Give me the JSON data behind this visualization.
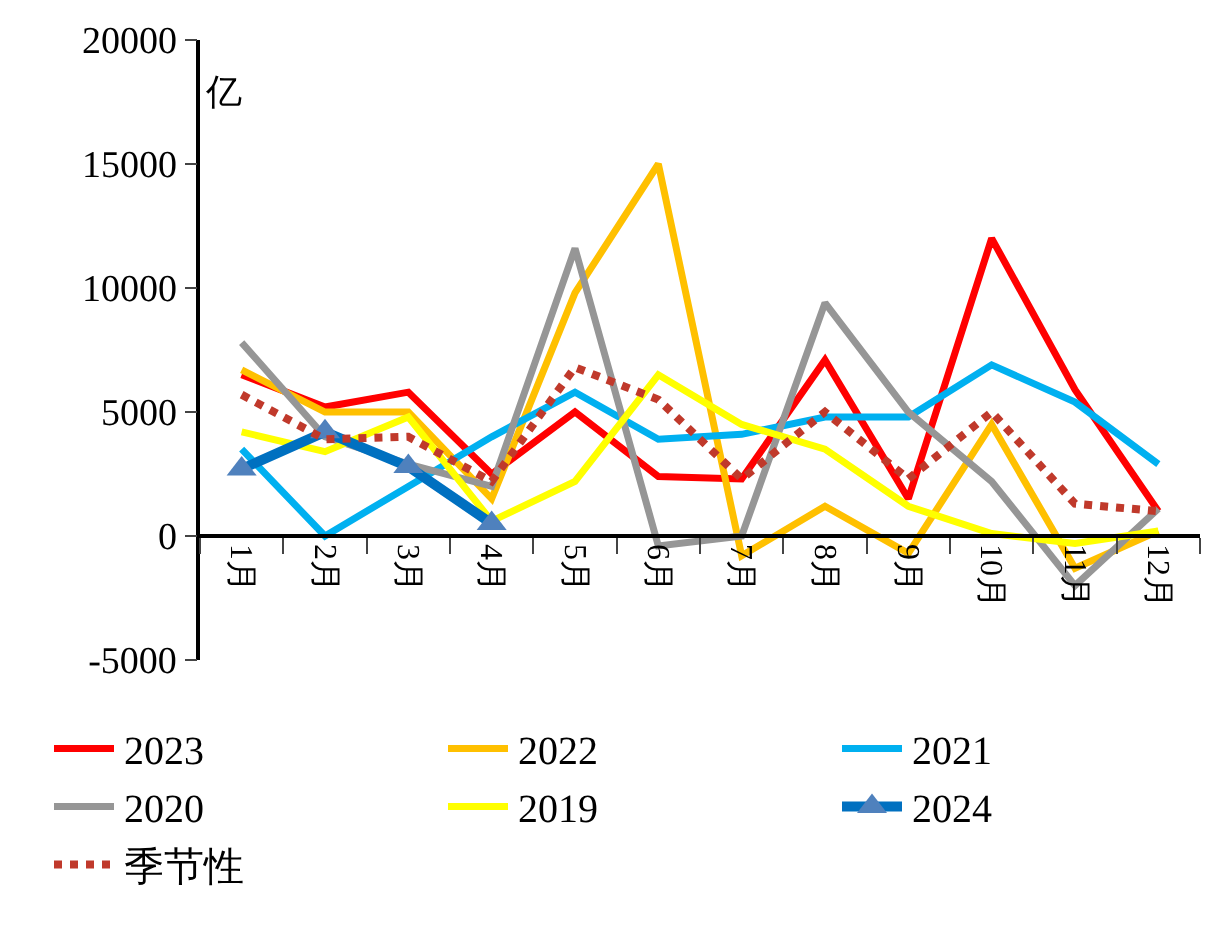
{
  "chart_data": {
    "type": "line",
    "ylabel": "亿",
    "categories": [
      "1月",
      "2月",
      "3月",
      "4月",
      "5月",
      "6月",
      "7月",
      "8月",
      "9月",
      "10月",
      "11月",
      "12月"
    ],
    "series": [
      {
        "name": "2023",
        "color": "#ff0000",
        "values": [
          6500,
          5200,
          5800,
          2500,
          5000,
          2400,
          2300,
          7100,
          1500,
          12000,
          5900,
          1000
        ]
      },
      {
        "name": "2022",
        "color": "#ffc000",
        "values": [
          6700,
          5000,
          5000,
          1500,
          9800,
          15000,
          -800,
          1200,
          -700,
          4500,
          -1300,
          200
        ]
      },
      {
        "name": "2021",
        "color": "#00b0f0",
        "values": [
          3500,
          0,
          2000,
          4000,
          5800,
          3900,
          4100,
          4800,
          4800,
          6900,
          5400,
          2900
        ]
      },
      {
        "name": "2020",
        "color": "#969696",
        "values": [
          7800,
          4000,
          2900,
          2000,
          11600,
          -400,
          0,
          9400,
          5000,
          2200,
          -2000,
          1100
        ]
      },
      {
        "name": "2019",
        "color": "#ffff00",
        "values": [
          4200,
          3400,
          4800,
          600,
          2200,
          6500,
          4500,
          3500,
          1200,
          100,
          -300,
          200
        ]
      },
      {
        "name": "2024",
        "color": "#0070c0",
        "marker": "triangle",
        "values": [
          2700,
          4200,
          2800,
          500,
          null,
          null,
          null,
          null,
          null,
          null,
          null,
          null
        ]
      },
      {
        "name": "季节性",
        "color": "#c0392b",
        "line_style": "dotted",
        "values": [
          5700,
          3900,
          4000,
          2200,
          6800,
          5500,
          2300,
          5000,
          2300,
          5000,
          1300,
          1000
        ]
      }
    ],
    "ylim": [
      -5000,
      20000
    ],
    "yticks": [
      -5000,
      0,
      5000,
      10000,
      15000,
      20000
    ],
    "legend": "bottom"
  }
}
